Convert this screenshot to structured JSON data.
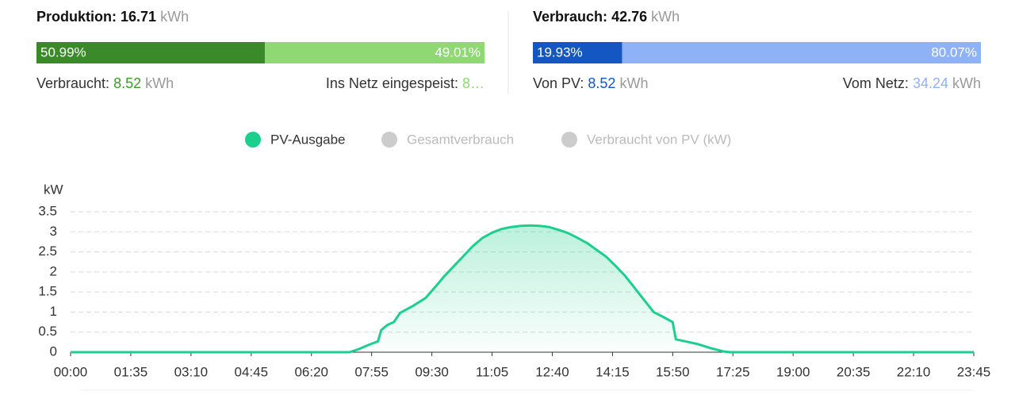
{
  "production": {
    "title": "Produktion:",
    "total": "16.71",
    "unit": "kWh",
    "segments": [
      {
        "value": 50.99,
        "label": "50.99%",
        "color": "#3a8a2a"
      },
      {
        "value": 49.01,
        "label": "49.01%",
        "color": "#8fd873"
      }
    ],
    "left": {
      "label": "Verbraucht:",
      "value": "8.52",
      "unit": "kWh"
    },
    "right": {
      "label": "Ins Netz eingespeist:",
      "value": "8…"
    }
  },
  "consumption": {
    "title": "Verbrauch:",
    "total": "42.76",
    "unit": "kWh",
    "segments": [
      {
        "value": 19.93,
        "label": "19.93%",
        "color": "#1456c2"
      },
      {
        "value": 80.07,
        "label": "80.07%",
        "color": "#8fb2f7"
      }
    ],
    "left": {
      "label": "Von PV:",
      "value": "8.52",
      "unit": "kWh"
    },
    "right": {
      "label": "Vom Netz:",
      "value": "34.24",
      "unit": "kWh"
    }
  },
  "chart_data": {
    "type": "line",
    "ylabel": "kW",
    "x": [
      "00:00",
      "07:20",
      "07:35",
      "07:50",
      "08:05",
      "08:10",
      "08:20",
      "08:30",
      "08:40",
      "09:00",
      "09:20",
      "09:35",
      "09:50",
      "10:05",
      "10:20",
      "10:35",
      "10:50",
      "11:05",
      "11:20",
      "11:35",
      "11:50",
      "12:05",
      "12:20",
      "12:35",
      "12:50",
      "13:05",
      "13:20",
      "13:35",
      "13:50",
      "14:05",
      "14:20",
      "14:35",
      "14:50",
      "15:05",
      "15:20",
      "15:35",
      "15:50",
      "15:55",
      "16:10",
      "16:30",
      "16:50",
      "17:10",
      "17:20",
      "23:45"
    ],
    "series": [
      {
        "name": "PV-Ausgabe",
        "color": "#1dcf8e",
        "values": [
          0,
          0,
          0.08,
          0.18,
          0.27,
          0.55,
          0.68,
          0.75,
          0.98,
          1.15,
          1.35,
          1.62,
          1.9,
          2.15,
          2.4,
          2.65,
          2.85,
          2.98,
          3.07,
          3.12,
          3.15,
          3.16,
          3.15,
          3.12,
          3.05,
          2.97,
          2.85,
          2.72,
          2.55,
          2.38,
          2.15,
          1.9,
          1.6,
          1.3,
          1.0,
          0.88,
          0.75,
          0.32,
          0.27,
          0.2,
          0.1,
          0.02,
          0,
          0
        ]
      }
    ],
    "hidden_series": [
      {
        "name": "Gesamtverbrauch",
        "color": "#cccccc"
      },
      {
        "name": "Verbraucht von PV (kW)",
        "color": "#cccccc"
      }
    ],
    "xlim": [
      "00:00",
      "23:45"
    ],
    "xticks": [
      "00:00",
      "01:35",
      "03:10",
      "04:45",
      "06:20",
      "07:55",
      "09:30",
      "11:05",
      "12:40",
      "14:15",
      "15:50",
      "17:25",
      "19:00",
      "20:35",
      "22:10",
      "23:45"
    ],
    "ylim": [
      0,
      3.5
    ],
    "yticks": [
      0,
      0.5,
      1,
      1.5,
      2,
      2.5,
      3,
      3.5
    ],
    "grid": true,
    "area": true
  }
}
